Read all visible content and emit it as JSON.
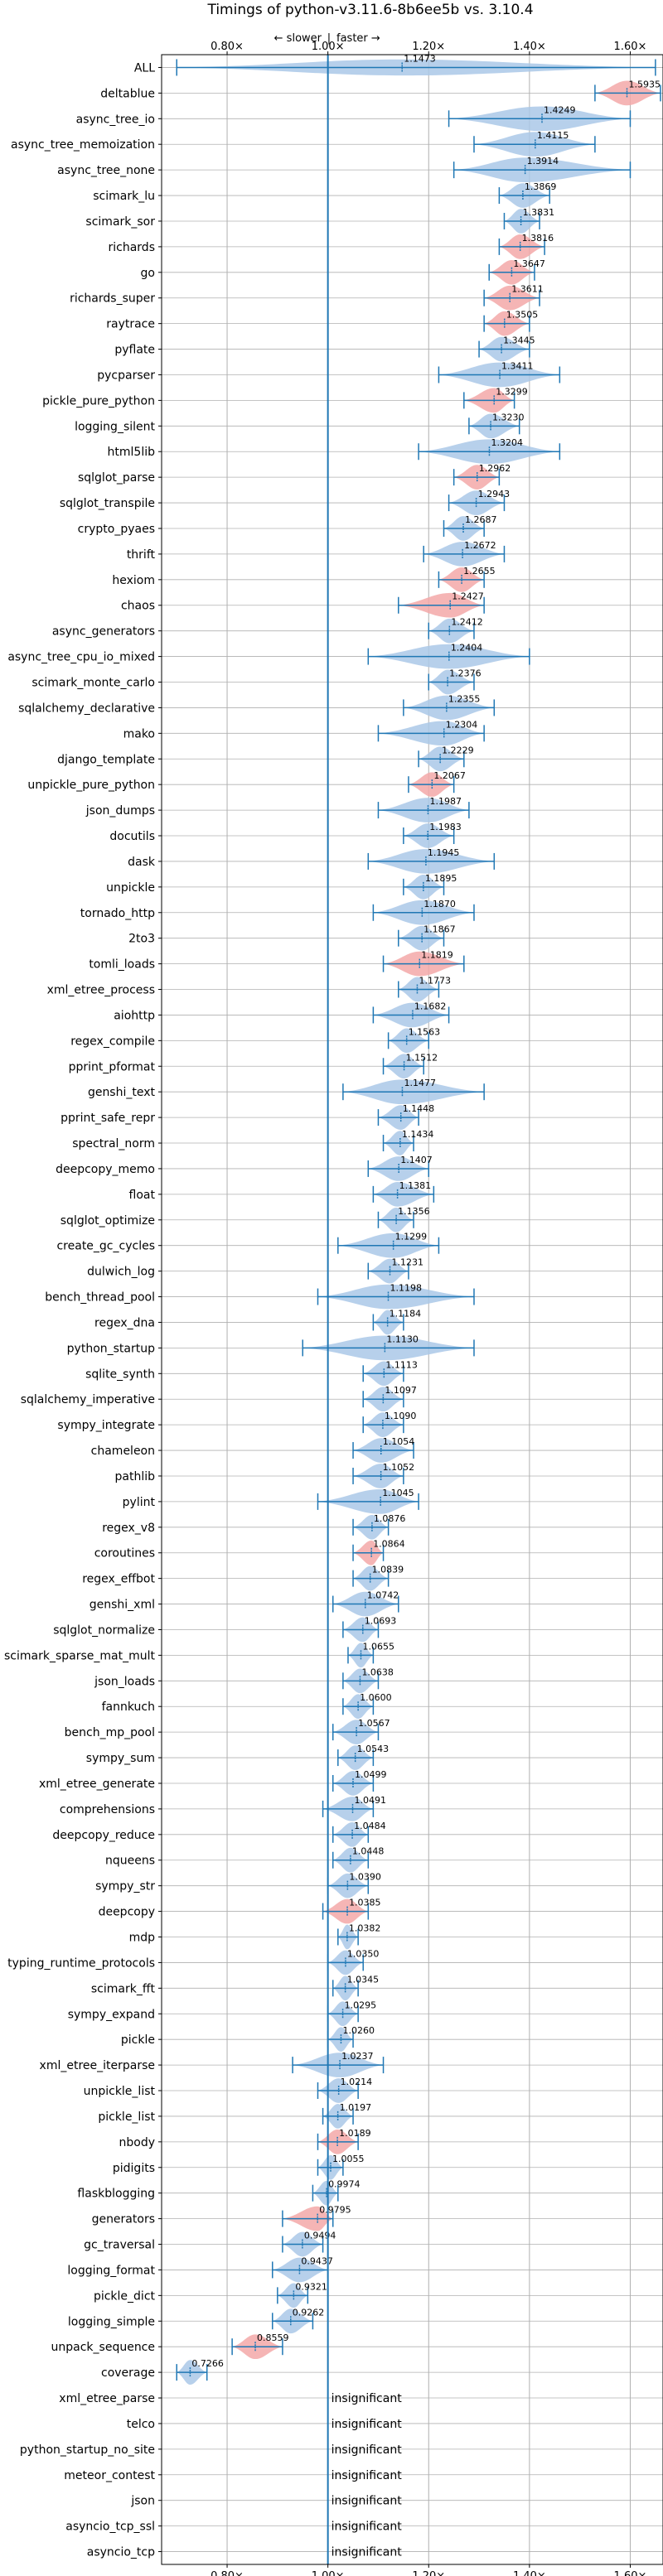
{
  "chart_data": {
    "type": "violin",
    "title": "Timings of python-v3.11.6-8b6ee5b vs. 3.10.4",
    "annotation_slower": "← slower",
    "annotation_sep": "|",
    "annotation_faster": "faster →",
    "xlim": [
      0.67,
      1.665
    ],
    "x_ticks": [
      {
        "value": 0.8,
        "label": "0.80×"
      },
      {
        "value": 1.0,
        "label": "1.00×"
      },
      {
        "value": 1.2,
        "label": "1.20×"
      },
      {
        "value": 1.4,
        "label": "1.40×"
      },
      {
        "value": 1.6,
        "label": "1.60×"
      }
    ],
    "reference_line": 1.0,
    "grid": true,
    "insignificant_label": "insignificant",
    "colors": {
      "normal": "#aac8e8",
      "highlight": "#f3a8a8",
      "line": "#1f77b4",
      "grid": "#b0b0b0"
    },
    "benchmarks": [
      {
        "name": "ALL",
        "mean": 1.1473,
        "min": 0.7,
        "max": 1.65,
        "color": "normal"
      },
      {
        "name": "deltablue",
        "mean": 1.5935,
        "min": 1.53,
        "max": 1.66,
        "color": "highlight"
      },
      {
        "name": "async_tree_io",
        "mean": 1.4249,
        "min": 1.24,
        "max": 1.6,
        "color": "normal"
      },
      {
        "name": "async_tree_memoization",
        "mean": 1.4115,
        "min": 1.29,
        "max": 1.53,
        "color": "normal"
      },
      {
        "name": "async_tree_none",
        "mean": 1.3914,
        "min": 1.25,
        "max": 1.6,
        "color": "normal"
      },
      {
        "name": "scimark_lu",
        "mean": 1.3869,
        "min": 1.34,
        "max": 1.44,
        "color": "normal"
      },
      {
        "name": "scimark_sor",
        "mean": 1.3831,
        "min": 1.35,
        "max": 1.42,
        "color": "normal"
      },
      {
        "name": "richards",
        "mean": 1.3816,
        "min": 1.34,
        "max": 1.43,
        "color": "highlight"
      },
      {
        "name": "go",
        "mean": 1.3647,
        "min": 1.32,
        "max": 1.41,
        "color": "highlight"
      },
      {
        "name": "richards_super",
        "mean": 1.3611,
        "min": 1.31,
        "max": 1.42,
        "color": "highlight"
      },
      {
        "name": "raytrace",
        "mean": 1.3505,
        "min": 1.31,
        "max": 1.4,
        "color": "highlight"
      },
      {
        "name": "pyflate",
        "mean": 1.3445,
        "min": 1.3,
        "max": 1.4,
        "color": "normal"
      },
      {
        "name": "pycparser",
        "mean": 1.3411,
        "min": 1.22,
        "max": 1.46,
        "color": "normal"
      },
      {
        "name": "pickle_pure_python",
        "mean": 1.3299,
        "min": 1.27,
        "max": 1.37,
        "color": "highlight"
      },
      {
        "name": "logging_silent",
        "mean": 1.323,
        "min": 1.28,
        "max": 1.38,
        "color": "normal"
      },
      {
        "name": "html5lib",
        "mean": 1.3204,
        "min": 1.18,
        "max": 1.46,
        "color": "normal"
      },
      {
        "name": "sqlglot_parse",
        "mean": 1.2962,
        "min": 1.25,
        "max": 1.34,
        "color": "highlight"
      },
      {
        "name": "sqlglot_transpile",
        "mean": 1.2943,
        "min": 1.24,
        "max": 1.35,
        "color": "normal"
      },
      {
        "name": "crypto_pyaes",
        "mean": 1.2687,
        "min": 1.23,
        "max": 1.31,
        "color": "normal"
      },
      {
        "name": "thrift",
        "mean": 1.2672,
        "min": 1.19,
        "max": 1.35,
        "color": "normal"
      },
      {
        "name": "hexiom",
        "mean": 1.2655,
        "min": 1.22,
        "max": 1.31,
        "color": "highlight"
      },
      {
        "name": "chaos",
        "mean": 1.2427,
        "min": 1.14,
        "max": 1.31,
        "color": "highlight"
      },
      {
        "name": "async_generators",
        "mean": 1.2412,
        "min": 1.2,
        "max": 1.29,
        "color": "normal"
      },
      {
        "name": "async_tree_cpu_io_mixed",
        "mean": 1.2404,
        "min": 1.08,
        "max": 1.4,
        "color": "normal"
      },
      {
        "name": "scimark_monte_carlo",
        "mean": 1.2376,
        "min": 1.2,
        "max": 1.29,
        "color": "normal"
      },
      {
        "name": "sqlalchemy_declarative",
        "mean": 1.2355,
        "min": 1.15,
        "max": 1.33,
        "color": "normal"
      },
      {
        "name": "mako",
        "mean": 1.2304,
        "min": 1.1,
        "max": 1.31,
        "color": "normal"
      },
      {
        "name": "django_template",
        "mean": 1.2229,
        "min": 1.18,
        "max": 1.27,
        "color": "normal"
      },
      {
        "name": "unpickle_pure_python",
        "mean": 1.2067,
        "min": 1.16,
        "max": 1.25,
        "color": "highlight"
      },
      {
        "name": "json_dumps",
        "mean": 1.1987,
        "min": 1.1,
        "max": 1.28,
        "color": "normal"
      },
      {
        "name": "docutils",
        "mean": 1.1983,
        "min": 1.15,
        "max": 1.25,
        "color": "normal"
      },
      {
        "name": "dask",
        "mean": 1.1945,
        "min": 1.08,
        "max": 1.33,
        "color": "normal"
      },
      {
        "name": "unpickle",
        "mean": 1.1895,
        "min": 1.15,
        "max": 1.23,
        "color": "normal"
      },
      {
        "name": "tornado_http",
        "mean": 1.187,
        "min": 1.09,
        "max": 1.29,
        "color": "normal"
      },
      {
        "name": "2to3",
        "mean": 1.1867,
        "min": 1.14,
        "max": 1.23,
        "color": "normal"
      },
      {
        "name": "tomli_loads",
        "mean": 1.1819,
        "min": 1.11,
        "max": 1.27,
        "color": "highlight"
      },
      {
        "name": "xml_etree_process",
        "mean": 1.1773,
        "min": 1.14,
        "max": 1.22,
        "color": "normal"
      },
      {
        "name": "aiohttp",
        "mean": 1.1682,
        "min": 1.09,
        "max": 1.24,
        "color": "normal"
      },
      {
        "name": "regex_compile",
        "mean": 1.1563,
        "min": 1.12,
        "max": 1.2,
        "color": "normal"
      },
      {
        "name": "pprint_pformat",
        "mean": 1.1512,
        "min": 1.11,
        "max": 1.19,
        "color": "normal"
      },
      {
        "name": "genshi_text",
        "mean": 1.1477,
        "min": 1.03,
        "max": 1.31,
        "color": "normal"
      },
      {
        "name": "pprint_safe_repr",
        "mean": 1.1448,
        "min": 1.1,
        "max": 1.18,
        "color": "normal"
      },
      {
        "name": "spectral_norm",
        "mean": 1.1434,
        "min": 1.11,
        "max": 1.17,
        "color": "normal"
      },
      {
        "name": "deepcopy_memo",
        "mean": 1.1407,
        "min": 1.08,
        "max": 1.2,
        "color": "normal"
      },
      {
        "name": "float",
        "mean": 1.1381,
        "min": 1.09,
        "max": 1.21,
        "color": "normal"
      },
      {
        "name": "sqlglot_optimize",
        "mean": 1.1356,
        "min": 1.1,
        "max": 1.17,
        "color": "normal"
      },
      {
        "name": "create_gc_cycles",
        "mean": 1.1299,
        "min": 1.02,
        "max": 1.22,
        "color": "normal"
      },
      {
        "name": "dulwich_log",
        "mean": 1.1231,
        "min": 1.08,
        "max": 1.16,
        "color": "normal"
      },
      {
        "name": "bench_thread_pool",
        "mean": 1.1198,
        "min": 0.98,
        "max": 1.29,
        "color": "normal"
      },
      {
        "name": "regex_dna",
        "mean": 1.1184,
        "min": 1.09,
        "max": 1.15,
        "color": "normal"
      },
      {
        "name": "python_startup",
        "mean": 1.113,
        "min": 0.95,
        "max": 1.29,
        "color": "normal"
      },
      {
        "name": "sqlite_synth",
        "mean": 1.1113,
        "min": 1.07,
        "max": 1.15,
        "color": "normal"
      },
      {
        "name": "sqlalchemy_imperative",
        "mean": 1.1097,
        "min": 1.07,
        "max": 1.15,
        "color": "normal"
      },
      {
        "name": "sympy_integrate",
        "mean": 1.109,
        "min": 1.07,
        "max": 1.15,
        "color": "normal"
      },
      {
        "name": "chameleon",
        "mean": 1.1054,
        "min": 1.05,
        "max": 1.17,
        "color": "normal"
      },
      {
        "name": "pathlib",
        "mean": 1.1052,
        "min": 1.05,
        "max": 1.15,
        "color": "normal"
      },
      {
        "name": "pylint",
        "mean": 1.1045,
        "min": 0.98,
        "max": 1.18,
        "color": "normal"
      },
      {
        "name": "regex_v8",
        "mean": 1.0876,
        "min": 1.05,
        "max": 1.12,
        "color": "normal"
      },
      {
        "name": "coroutines",
        "mean": 1.0864,
        "min": 1.05,
        "max": 1.11,
        "color": "highlight"
      },
      {
        "name": "regex_effbot",
        "mean": 1.0839,
        "min": 1.05,
        "max": 1.12,
        "color": "normal"
      },
      {
        "name": "genshi_xml",
        "mean": 1.0742,
        "min": 1.01,
        "max": 1.14,
        "color": "normal"
      },
      {
        "name": "sqlglot_normalize",
        "mean": 1.0693,
        "min": 1.03,
        "max": 1.1,
        "color": "normal"
      },
      {
        "name": "scimark_sparse_mat_mult",
        "mean": 1.0655,
        "min": 1.04,
        "max": 1.09,
        "color": "normal"
      },
      {
        "name": "json_loads",
        "mean": 1.0638,
        "min": 1.03,
        "max": 1.1,
        "color": "normal"
      },
      {
        "name": "fannkuch",
        "mean": 1.06,
        "min": 1.03,
        "max": 1.09,
        "color": "normal"
      },
      {
        "name": "bench_mp_pool",
        "mean": 1.0567,
        "min": 1.01,
        "max": 1.1,
        "color": "normal"
      },
      {
        "name": "sympy_sum",
        "mean": 1.0543,
        "min": 1.02,
        "max": 1.09,
        "color": "normal"
      },
      {
        "name": "xml_etree_generate",
        "mean": 1.0499,
        "min": 1.01,
        "max": 1.09,
        "color": "normal"
      },
      {
        "name": "comprehensions",
        "mean": 1.0491,
        "min": 0.99,
        "max": 1.09,
        "color": "normal"
      },
      {
        "name": "deepcopy_reduce",
        "mean": 1.0484,
        "min": 1.01,
        "max": 1.08,
        "color": "normal"
      },
      {
        "name": "nqueens",
        "mean": 1.0448,
        "min": 1.01,
        "max": 1.08,
        "color": "normal"
      },
      {
        "name": "sympy_str",
        "mean": 1.039,
        "min": 1.0,
        "max": 1.08,
        "color": "normal"
      },
      {
        "name": "deepcopy",
        "mean": 1.0385,
        "min": 0.99,
        "max": 1.08,
        "color": "highlight"
      },
      {
        "name": "mdp",
        "mean": 1.0382,
        "min": 1.02,
        "max": 1.06,
        "color": "normal"
      },
      {
        "name": "typing_runtime_protocols",
        "mean": 1.035,
        "min": 1.0,
        "max": 1.07,
        "color": "normal"
      },
      {
        "name": "scimark_fft",
        "mean": 1.0345,
        "min": 1.01,
        "max": 1.06,
        "color": "normal"
      },
      {
        "name": "sympy_expand",
        "mean": 1.0295,
        "min": 1.0,
        "max": 1.06,
        "color": "normal"
      },
      {
        "name": "pickle",
        "mean": 1.026,
        "min": 1.0,
        "max": 1.05,
        "color": "normal"
      },
      {
        "name": "xml_etree_iterparse",
        "mean": 1.0237,
        "min": 0.93,
        "max": 1.11,
        "color": "normal"
      },
      {
        "name": "unpickle_list",
        "mean": 1.0214,
        "min": 0.98,
        "max": 1.06,
        "color": "normal"
      },
      {
        "name": "pickle_list",
        "mean": 1.0197,
        "min": 0.99,
        "max": 1.05,
        "color": "normal"
      },
      {
        "name": "nbody",
        "mean": 1.0189,
        "min": 0.98,
        "max": 1.06,
        "color": "highlight"
      },
      {
        "name": "pidigits",
        "mean": 1.0055,
        "min": 0.98,
        "max": 1.03,
        "color": "normal"
      },
      {
        "name": "flaskblogging",
        "mean": 0.9974,
        "min": 0.97,
        "max": 1.02,
        "color": "normal"
      },
      {
        "name": "generators",
        "mean": 0.9795,
        "min": 0.91,
        "max": 1.01,
        "color": "highlight"
      },
      {
        "name": "gc_traversal",
        "mean": 0.9494,
        "min": 0.91,
        "max": 0.99,
        "color": "normal"
      },
      {
        "name": "logging_format",
        "mean": 0.9437,
        "min": 0.89,
        "max": 1.0,
        "color": "normal"
      },
      {
        "name": "pickle_dict",
        "mean": 0.9321,
        "min": 0.9,
        "max": 0.96,
        "color": "normal"
      },
      {
        "name": "logging_simple",
        "mean": 0.9262,
        "min": 0.89,
        "max": 0.97,
        "color": "normal"
      },
      {
        "name": "unpack_sequence",
        "mean": 0.8559,
        "min": 0.81,
        "max": 0.91,
        "color": "highlight"
      },
      {
        "name": "coverage",
        "mean": 0.7266,
        "min": 0.7,
        "max": 0.76,
        "color": "normal"
      },
      {
        "name": "xml_etree_parse",
        "insignificant": true
      },
      {
        "name": "telco",
        "insignificant": true
      },
      {
        "name": "python_startup_no_site",
        "insignificant": true
      },
      {
        "name": "meteor_contest",
        "insignificant": true
      },
      {
        "name": "json",
        "insignificant": true
      },
      {
        "name": "asyncio_tcp_ssl",
        "insignificant": true
      },
      {
        "name": "asyncio_tcp",
        "insignificant": true
      }
    ]
  }
}
